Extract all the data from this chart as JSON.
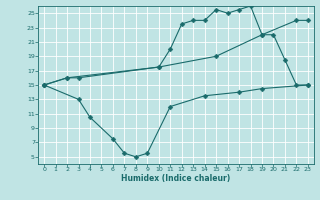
{
  "line1": {
    "x": [
      0,
      2,
      3,
      10,
      11,
      12,
      13,
      14,
      15,
      16,
      17,
      18,
      19,
      20,
      21,
      22,
      23
    ],
    "y": [
      15,
      16,
      16,
      17.5,
      20,
      23.5,
      24,
      24,
      25.5,
      25,
      25.5,
      26,
      22,
      22,
      18.5,
      15,
      15
    ]
  },
  "line2": {
    "x": [
      0,
      2,
      10,
      15,
      19,
      22,
      23
    ],
    "y": [
      15,
      16,
      17.5,
      19,
      22,
      24,
      24
    ]
  },
  "line3": {
    "x": [
      0,
      3,
      4,
      6,
      7,
      8,
      9,
      11,
      14,
      17,
      19,
      23
    ],
    "y": [
      15,
      13,
      10.5,
      7.5,
      5.5,
      5,
      5.5,
      12,
      13.5,
      14,
      14.5,
      15
    ]
  },
  "color": "#1a6b6b",
  "bg_color": "#c0e4e4",
  "grid_color": "#ffffff",
  "xlabel": "Humidex (Indice chaleur)",
  "xlim": [
    -0.5,
    23.5
  ],
  "ylim": [
    4,
    26
  ],
  "yticks": [
    5,
    7,
    9,
    11,
    13,
    15,
    17,
    19,
    21,
    23,
    25
  ],
  "xticks": [
    0,
    1,
    2,
    3,
    4,
    5,
    6,
    7,
    8,
    9,
    10,
    11,
    12,
    13,
    14,
    15,
    16,
    17,
    18,
    19,
    20,
    21,
    22,
    23
  ],
  "markersize": 2.5
}
